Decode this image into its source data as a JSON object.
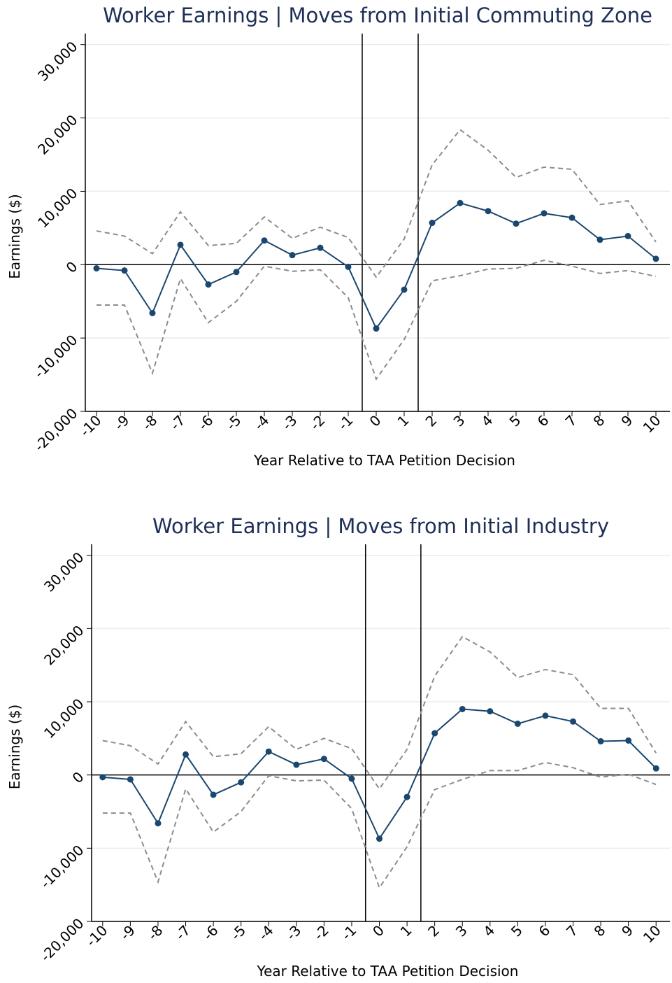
{
  "chart_data": [
    {
      "type": "line",
      "title": "Worker Earnings | Moves from Initial Commuting Zone",
      "xlabel": "Year Relative to TAA Petition Decision",
      "ylabel": "Earnings ($)",
      "x": [
        -10,
        -9,
        -8,
        -7,
        -6,
        -5,
        -4,
        -3,
        -2,
        -1,
        0,
        1,
        2,
        3,
        4,
        5,
        6,
        7,
        8,
        9,
        10
      ],
      "series": [
        {
          "color": "#1a476f",
          "dash": false,
          "markers": true,
          "values": [
            -500,
            -800,
            -6600,
            2700,
            -2700,
            -1000,
            3300,
            1300,
            2300,
            -300,
            -8700,
            -3400,
            5700,
            8400,
            7300,
            5600,
            7000,
            6400,
            3400,
            3900,
            800
          ]
        },
        {
          "color": "#8c8c8c",
          "dash": true,
          "markers": false,
          "values": [
            4600,
            3900,
            1500,
            7200,
            2600,
            2900,
            6500,
            3600,
            5100,
            3700,
            -1700,
            3500,
            13600,
            18400,
            15600,
            11900,
            13300,
            13000,
            8200,
            8700,
            3100
          ]
        },
        {
          "color": "#8c8c8c",
          "dash": true,
          "markers": false,
          "values": [
            -5500,
            -5500,
            -14800,
            -1900,
            -7900,
            -5000,
            -200,
            -900,
            -700,
            -4500,
            -15600,
            -10200,
            -2200,
            -1500,
            -600,
            -500,
            600,
            -200,
            -1200,
            -800,
            -1600
          ]
        }
      ],
      "xlim": [
        -10.4,
        10.5
      ],
      "xticks": [
        -10,
        -9,
        -8,
        -7,
        -6,
        -5,
        -4,
        -3,
        -2,
        -1,
        0,
        1,
        2,
        3,
        4,
        5,
        6,
        7,
        8,
        9,
        10
      ],
      "ylim": [
        -20000,
        31500
      ],
      "yticks": [
        {
          "value": -20000,
          "label": "-20,000"
        },
        {
          "value": -10000,
          "label": "-10,000"
        },
        0,
        {
          "value": 10000,
          "label": "10,000"
        },
        {
          "value": 20000,
          "label": "20,000"
        },
        {
          "value": 30000,
          "label": "30,000"
        }
      ],
      "grid": true,
      "vlines": [
        -0.5,
        1.5
      ],
      "hline": 0
    },
    {
      "type": "line",
      "title": "Worker Earnings | Moves from Initial Industry",
      "xlabel": "Year Relative to TAA Petition Decision",
      "ylabel": "Earnings ($)",
      "x": [
        -10,
        -9,
        -8,
        -7,
        -6,
        -5,
        -4,
        -3,
        -2,
        -1,
        0,
        1,
        2,
        3,
        4,
        5,
        6,
        7,
        8,
        9,
        10
      ],
      "series": [
        {
          "color": "#1a476f",
          "dash": false,
          "markers": true,
          "values": [
            -300,
            -600,
            -6600,
            2800,
            -2700,
            -1000,
            3200,
            1400,
            2200,
            -500,
            -8700,
            -3000,
            5700,
            9000,
            8700,
            7000,
            8100,
            7300,
            4600,
            4700,
            900
          ]
        },
        {
          "color": "#8c8c8c",
          "dash": true,
          "markers": false,
          "values": [
            4700,
            4000,
            1500,
            7300,
            2500,
            2900,
            6600,
            3500,
            5000,
            3600,
            -1900,
            3500,
            13500,
            18900,
            16800,
            13300,
            14400,
            13700,
            9100,
            9100,
            3000
          ]
        },
        {
          "color": "#8c8c8c",
          "dash": true,
          "markers": false,
          "values": [
            -5200,
            -5200,
            -14600,
            -1900,
            -7800,
            -5000,
            -100,
            -800,
            -700,
            -4600,
            -15400,
            -9800,
            -2000,
            -600,
            600,
            600,
            1700,
            1000,
            -300,
            100,
            -1300
          ]
        }
      ],
      "xlim": [
        -10.4,
        10.5
      ],
      "xticks": [
        -10,
        -9,
        -8,
        -7,
        -6,
        -5,
        -4,
        -3,
        -2,
        -1,
        0,
        1,
        2,
        3,
        4,
        5,
        6,
        7,
        8,
        9,
        10
      ],
      "ylim": [
        -20000,
        31500
      ],
      "yticks": [
        {
          "value": -20000,
          "label": "-20,000"
        },
        {
          "value": -10000,
          "label": "-10,000"
        },
        0,
        {
          "value": 10000,
          "label": "10,000"
        },
        {
          "value": 20000,
          "label": "20,000"
        },
        {
          "value": 30000,
          "label": "30,000"
        }
      ],
      "grid": true,
      "vlines": [
        -0.5,
        1.5
      ],
      "hline": 0
    }
  ]
}
